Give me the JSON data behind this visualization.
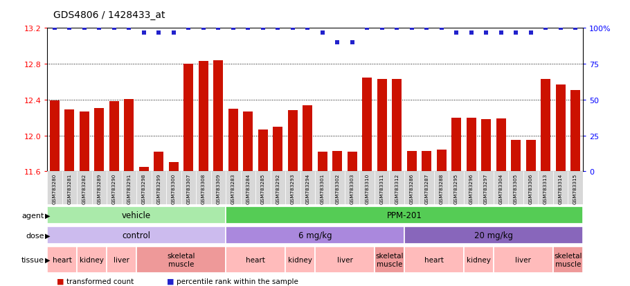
{
  "title": "GDS4806 / 1428433_at",
  "samples": [
    "GSM783280",
    "GSM783281",
    "GSM783282",
    "GSM783289",
    "GSM783290",
    "GSM783291",
    "GSM783298",
    "GSM783299",
    "GSM783300",
    "GSM783307",
    "GSM783308",
    "GSM783309",
    "GSM783283",
    "GSM783284",
    "GSM783285",
    "GSM783292",
    "GSM783293",
    "GSM783294",
    "GSM783301",
    "GSM783302",
    "GSM783303",
    "GSM783310",
    "GSM783311",
    "GSM783312",
    "GSM783286",
    "GSM783287",
    "GSM783288",
    "GSM783295",
    "GSM783296",
    "GSM783297",
    "GSM783304",
    "GSM783305",
    "GSM783306",
    "GSM783313",
    "GSM783314",
    "GSM783315"
  ],
  "bar_values": [
    12.39,
    12.29,
    12.27,
    12.31,
    12.38,
    12.41,
    11.65,
    11.82,
    11.7,
    12.8,
    12.83,
    12.84,
    12.3,
    12.27,
    12.07,
    12.1,
    12.28,
    12.34,
    11.82,
    11.83,
    11.82,
    12.65,
    12.63,
    12.63,
    11.83,
    11.83,
    11.84,
    12.2,
    12.2,
    12.18,
    12.19,
    11.95,
    11.95,
    12.63,
    12.57,
    12.51
  ],
  "percentile_values": [
    100,
    100,
    100,
    100,
    100,
    100,
    97,
    97,
    97,
    100,
    100,
    100,
    100,
    100,
    100,
    100,
    100,
    100,
    97,
    90,
    90,
    100,
    100,
    100,
    100,
    100,
    100,
    97,
    97,
    97,
    97,
    97,
    97,
    100,
    100,
    100
  ],
  "bar_color": "#cc1100",
  "dot_color": "#2222cc",
  "ylim_left": [
    11.6,
    13.2
  ],
  "ylim_right": [
    0,
    100
  ],
  "yticks_left": [
    11.6,
    12.0,
    12.4,
    12.8,
    13.2
  ],
  "yticks_right": [
    0,
    25,
    50,
    75,
    100
  ],
  "agent_groups": [
    {
      "label": "vehicle",
      "start": 0,
      "end": 11,
      "color": "#aaeaaa"
    },
    {
      "label": "PPM-201",
      "start": 12,
      "end": 35,
      "color": "#55cc55"
    }
  ],
  "dose_groups": [
    {
      "label": "control",
      "start": 0,
      "end": 11,
      "color": "#ccbbee"
    },
    {
      "label": "6 mg/kg",
      "start": 12,
      "end": 23,
      "color": "#aa88dd"
    },
    {
      "label": "20 mg/kg",
      "start": 24,
      "end": 35,
      "color": "#8866bb"
    }
  ],
  "tissue_groups": [
    {
      "label": "heart",
      "start": 0,
      "end": 1,
      "color": "#ffbbbb"
    },
    {
      "label": "kidney",
      "start": 2,
      "end": 3,
      "color": "#ffbbbb"
    },
    {
      "label": "liver",
      "start": 4,
      "end": 5,
      "color": "#ffbbbb"
    },
    {
      "label": "skeletal\nmuscle",
      "start": 6,
      "end": 11,
      "color": "#ee9999"
    },
    {
      "label": "heart",
      "start": 12,
      "end": 15,
      "color": "#ffbbbb"
    },
    {
      "label": "kidney",
      "start": 16,
      "end": 17,
      "color": "#ffbbbb"
    },
    {
      "label": "liver",
      "start": 18,
      "end": 21,
      "color": "#ffbbbb"
    },
    {
      "label": "skeletal\nmuscle",
      "start": 22,
      "end": 23,
      "color": "#ee9999"
    },
    {
      "label": "heart",
      "start": 24,
      "end": 27,
      "color": "#ffbbbb"
    },
    {
      "label": "kidney",
      "start": 28,
      "end": 29,
      "color": "#ffbbbb"
    },
    {
      "label": "liver",
      "start": 30,
      "end": 33,
      "color": "#ffbbbb"
    },
    {
      "label": "skeletal\nmuscle",
      "start": 34,
      "end": 35,
      "color": "#ee9999"
    }
  ],
  "tissue_col_groups": [
    {
      "start": 0,
      "end": 1,
      "color": "#ffbbbb"
    },
    {
      "start": 2,
      "end": 3,
      "color": "#ffbbbb"
    },
    {
      "start": 4,
      "end": 5,
      "color": "#ffbbbb"
    },
    {
      "start": 6,
      "end": 11,
      "color": "#ee9999"
    },
    {
      "start": 12,
      "end": 15,
      "color": "#ffbbbb"
    },
    {
      "start": 16,
      "end": 17,
      "color": "#ffbbbb"
    },
    {
      "start": 18,
      "end": 21,
      "color": "#ffbbbb"
    },
    {
      "start": 22,
      "end": 23,
      "color": "#ee9999"
    },
    {
      "start": 24,
      "end": 27,
      "color": "#ffbbbb"
    },
    {
      "start": 28,
      "end": 29,
      "color": "#ffbbbb"
    },
    {
      "start": 30,
      "end": 33,
      "color": "#ffbbbb"
    },
    {
      "start": 34,
      "end": 35,
      "color": "#ee9999"
    }
  ],
  "background_color": "#ffffff"
}
